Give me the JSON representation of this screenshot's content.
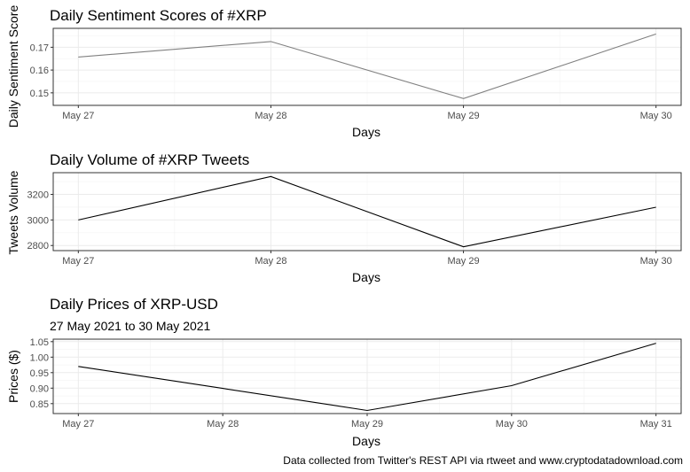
{
  "chart_data": [
    {
      "type": "line",
      "title": "Daily Sentiment Scores of #XRP",
      "subtitle": "",
      "xlabel": "Days",
      "ylabel": "Daily Sentiment Score",
      "x": [
        "May 27",
        "May 28",
        "May 29",
        "May 30"
      ],
      "series": [
        {
          "values": [
            0.1657,
            0.1725,
            0.1475,
            0.1758
          ]
        }
      ],
      "ylim": [
        0.1445,
        0.1783
      ],
      "yticks": [
        0.15,
        0.16,
        0.17
      ],
      "ytick_labels": [
        "0.15",
        "0.16",
        "0.17"
      ],
      "line_color": "#808080",
      "grid": true
    },
    {
      "type": "line",
      "title": "Daily Volume of #XRP Tweets",
      "subtitle": "",
      "xlabel": "Days",
      "ylabel": "Tweets Volume",
      "x": [
        "May 27",
        "May 28",
        "May 29",
        "May 30"
      ],
      "series": [
        {
          "values": [
            3000,
            3340,
            2790,
            3100
          ]
        }
      ],
      "ylim": [
        2760,
        3370
      ],
      "yticks": [
        2800,
        3000,
        3200
      ],
      "ytick_labels": [
        "2800",
        "3000",
        "3200"
      ],
      "line_color": "#000000",
      "grid": true
    },
    {
      "type": "line",
      "title": "Daily Prices of XRP-USD",
      "subtitle": "27 May 2021 to 30 May 2021",
      "xlabel": "Days",
      "ylabel": "Prices ($)",
      "x": [
        "May 27",
        "May 28",
        "May 29",
        "May 30",
        "May 31"
      ],
      "series": [
        {
          "values": [
            0.97,
            0.899,
            0.828,
            0.908,
            1.045
          ]
        }
      ],
      "ylim": [
        0.818,
        1.058
      ],
      "yticks": [
        0.85,
        0.9,
        0.95,
        1.0,
        1.05
      ],
      "ytick_labels": [
        "0.85",
        "0.90",
        "0.95",
        "1.00",
        "1.05"
      ],
      "line_color": "#000000",
      "grid": true
    }
  ],
  "caption": "Data collected from Twitter's REST API via rtweet and www.cryptodatadownload.com"
}
